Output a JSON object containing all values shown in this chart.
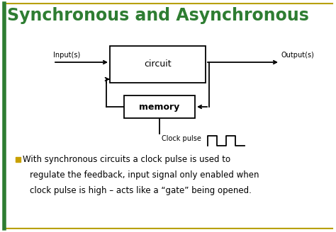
{
  "title": "Synchronous and Asynchronous",
  "title_color": "#2e7d32",
  "title_fontsize": 17,
  "bg_color": "#ffffff",
  "border_color_gold": "#b8a000",
  "border_color_green": "#2e7d32",
  "circuit_label": "circuit",
  "memory_label": "memory",
  "input_label": "Input(s)",
  "output_label": "Output(s)",
  "clock_label": "Clock pulse",
  "bullet_color": "#c8a000",
  "body_text_line1": "With synchronous circuits a clock pulse is used to",
  "body_text_line2": "regulate the feedback, input signal only enabled when",
  "body_text_line3": "clock pulse is high – acts like a “gate” being opened.",
  "text_color": "#000000",
  "body_fontsize": 8.5,
  "label_fontsize": 7.0,
  "diagram_fontsize": 9.0
}
